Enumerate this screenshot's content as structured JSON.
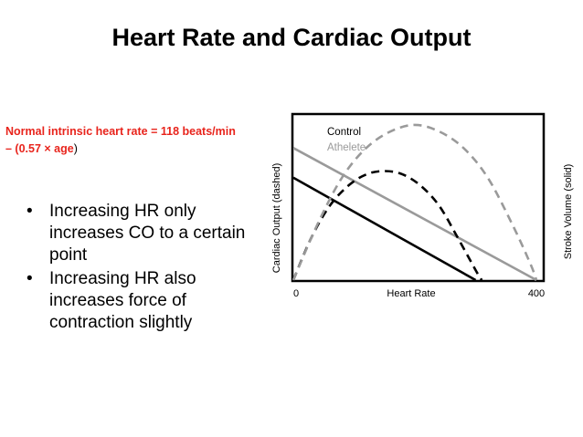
{
  "slide": {
    "title": "Heart Rate and Cardiac Output"
  },
  "formula": {
    "line1": "Normal intrinsic heart rate = 118 beats/min",
    "line2_prefix": "– (0.57 × age",
    "line2_suffix": ")"
  },
  "bullets": [
    {
      "marker": "•",
      "text": "Increasing HR only increases CO to a certain point"
    },
    {
      "marker": "•",
      "text": "Increasing HR also increases force of contraction slightly"
    }
  ],
  "colors": {
    "formula_red": "#e8241c",
    "control": "#000000",
    "athlete": "#9a9a9a"
  },
  "chart_data": {
    "type": "line",
    "title": "",
    "xlabel": "Heart Rate",
    "ylabel_left": "Cardiac Output (dashed)",
    "ylabel_right": "Stroke Volume (solid)",
    "xlim": [
      0,
      400
    ],
    "ylim": [
      0,
      100
    ],
    "x_ticks": [
      "0",
      "400"
    ],
    "legend": {
      "position": "top-left",
      "items": [
        {
          "label": "Control",
          "color": "#000000"
        },
        {
          "label": "Athelete",
          "color": "#9a9a9a"
        }
      ]
    },
    "series": [
      {
        "name": "Control stroke volume",
        "style": "solid",
        "color": "#000000",
        "x": [
          0,
          300
        ],
        "y": [
          62,
          0
        ]
      },
      {
        "name": "Athelete stroke volume",
        "style": "solid",
        "color": "#9a9a9a",
        "x": [
          0,
          400
        ],
        "y": [
          80,
          0
        ]
      },
      {
        "name": "Control cardiac output",
        "style": "dashed",
        "color": "#000000",
        "x": [
          0,
          30,
          60,
          90,
          120,
          150,
          180,
          210,
          240,
          270,
          300,
          310
        ],
        "y": [
          0,
          26,
          45,
          57,
          64,
          66,
          64,
          57,
          45,
          26,
          6,
          0
        ]
      },
      {
        "name": "Athelete cardiac output",
        "style": "dashed",
        "color": "#9a9a9a",
        "x": [
          0,
          40,
          80,
          120,
          160,
          200,
          240,
          280,
          320,
          360,
          390,
          400
        ],
        "y": [
          0,
          34,
          62,
          80,
          90,
          94,
          90,
          80,
          62,
          34,
          10,
          0
        ]
      }
    ]
  }
}
